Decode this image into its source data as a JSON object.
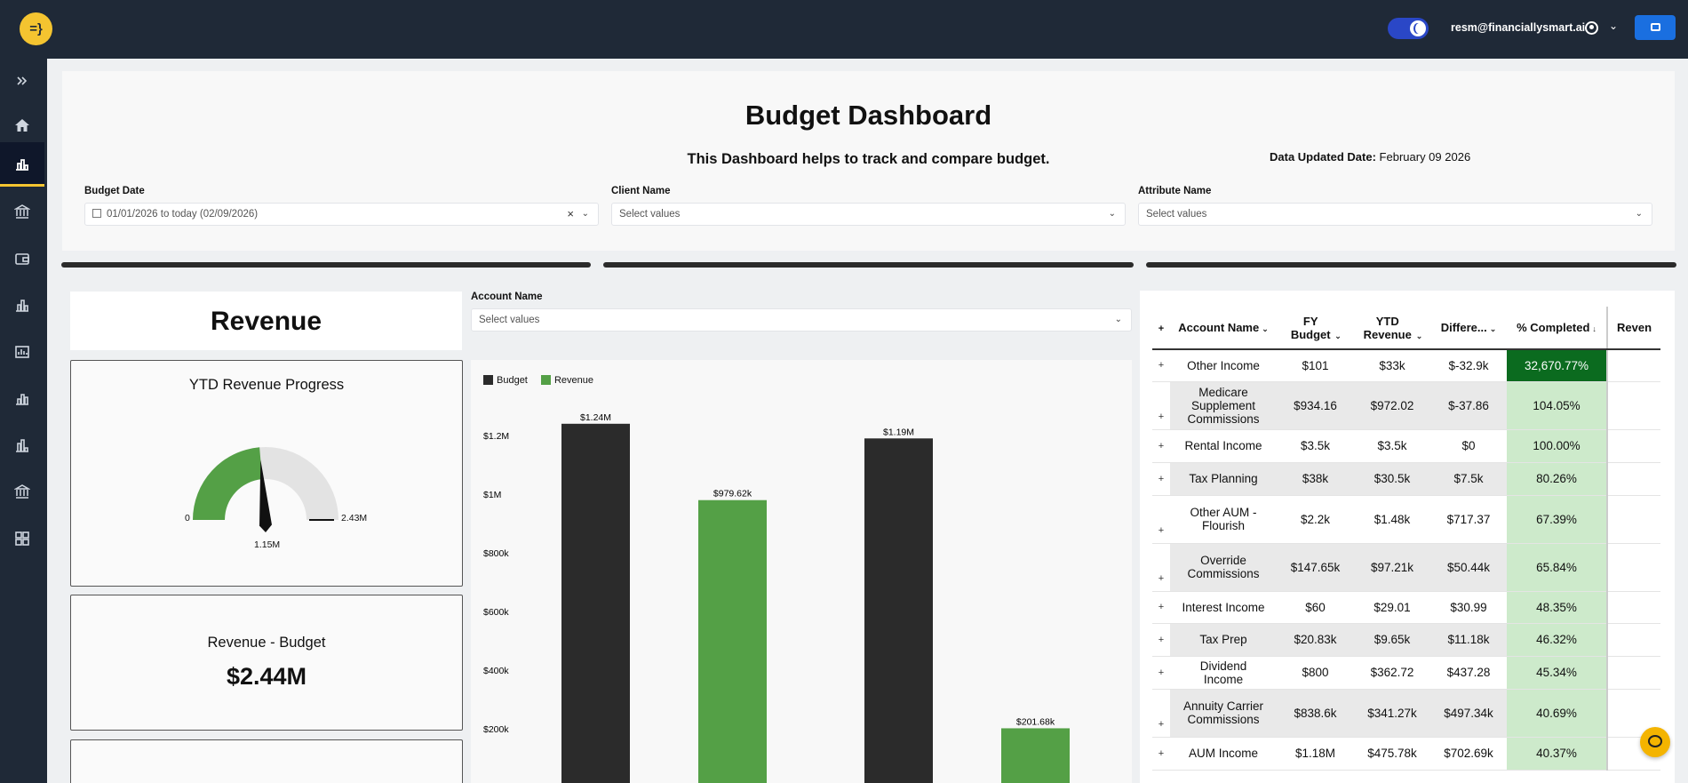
{
  "app": {
    "logo_text": "=}",
    "user_email": "resm@financiallysmart.ai"
  },
  "header": {
    "title": "Budget Dashboard",
    "subtitle": "This Dashboard helps to track and compare budget.",
    "updated_label": "Data Updated Date:",
    "updated_value": "February 09 2026"
  },
  "filters": {
    "budget_date": {
      "label": "Budget Date",
      "value": "01/01/2026 to today (02/09/2026)"
    },
    "client_name": {
      "label": "Client Name",
      "placeholder": "Select values"
    },
    "attribute_name": {
      "label": "Attribute Name",
      "placeholder": "Select values"
    },
    "account_name": {
      "label": "Account Name",
      "placeholder": "Select values"
    }
  },
  "revenue": {
    "heading": "Revenue",
    "progress": {
      "title": "YTD Revenue Progress",
      "min_label": "0",
      "max_label": "2.43M",
      "value_label": "1.15M",
      "min": 0,
      "max": 2.43,
      "value": 1.15
    },
    "diff": {
      "title": "Revenue - Budget",
      "value": "$2.44M"
    }
  },
  "chart_data": {
    "type": "bar",
    "series": [
      {
        "name": "Budget",
        "color": "#2b2b2b"
      },
      {
        "name": "Revenue",
        "color": "#54a046"
      }
    ],
    "bars": [
      {
        "series": "Budget",
        "value": 1240000,
        "label": "$1.24M"
      },
      {
        "series": "Revenue",
        "value": 979620,
        "label": "$979.62k"
      },
      {
        "series": "Budget",
        "value": 1190000,
        "label": "$1.19M"
      },
      {
        "series": "Revenue",
        "value": 201680,
        "label": "$201.68k"
      }
    ],
    "yticks": [
      {
        "value": 200000,
        "label": "$200k"
      },
      {
        "value": 400000,
        "label": "$400k"
      },
      {
        "value": 600000,
        "label": "$600k"
      },
      {
        "value": 800000,
        "label": "$800k"
      },
      {
        "value": 1000000,
        "label": "$1M"
      },
      {
        "value": 1200000,
        "label": "$1.2M"
      }
    ],
    "ylim": [
      0,
      1300000
    ],
    "legend_position": "top-left"
  },
  "table": {
    "columns": [
      "Account Name",
      "FY Budget",
      "YTD Revenue",
      "Differe...",
      "% Completed",
      "Reven"
    ],
    "rows": [
      {
        "name": "Other Income",
        "budget": "$101",
        "ytd": "$33k",
        "diff": "$-32.9k",
        "pct": "32,670.77%",
        "pct_value": 32670.77
      },
      {
        "name": "Medicare Supplement Commissions",
        "budget": "$934.16",
        "ytd": "$972.02",
        "diff": "$-37.86",
        "pct": "104.05%",
        "pct_value": 104.05
      },
      {
        "name": "Rental Income",
        "budget": "$3.5k",
        "ytd": "$3.5k",
        "diff": "$0",
        "pct": "100.00%",
        "pct_value": 100.0
      },
      {
        "name": "Tax Planning",
        "budget": "$38k",
        "ytd": "$30.5k",
        "diff": "$7.5k",
        "pct": "80.26%",
        "pct_value": 80.26
      },
      {
        "name": "Other AUM - Flourish",
        "budget": "$2.2k",
        "ytd": "$1.48k",
        "diff": "$717.37",
        "pct": "67.39%",
        "pct_value": 67.39
      },
      {
        "name": "Override Commissions",
        "budget": "$147.65k",
        "ytd": "$97.21k",
        "diff": "$50.44k",
        "pct": "65.84%",
        "pct_value": 65.84
      },
      {
        "name": "Interest Income",
        "budget": "$60",
        "ytd": "$29.01",
        "diff": "$30.99",
        "pct": "48.35%",
        "pct_value": 48.35
      },
      {
        "name": "Tax Prep",
        "budget": "$20.83k",
        "ytd": "$9.65k",
        "diff": "$11.18k",
        "pct": "46.32%",
        "pct_value": 46.32
      },
      {
        "name": "Dividend Income",
        "budget": "$800",
        "ytd": "$362.72",
        "diff": "$437.28",
        "pct": "45.34%",
        "pct_value": 45.34
      },
      {
        "name": "Annuity Carrier Commissions",
        "budget": "$838.6k",
        "ytd": "$341.27k",
        "diff": "$497.34k",
        "pct": "40.69%",
        "pct_value": 40.69
      },
      {
        "name": "AUM Income",
        "budget": "$1.18M",
        "ytd": "$475.78k",
        "diff": "$702.69k",
        "pct": "40.37%",
        "pct_value": 40.37
      }
    ]
  },
  "colors": {
    "accent": "#f4c430",
    "topbar": "#1f2937",
    "revenue_green": "#54a046",
    "budget_dark": "#2b2b2b",
    "pct_dark": "#0b6b1f",
    "pct_light": "#cdeacb"
  }
}
